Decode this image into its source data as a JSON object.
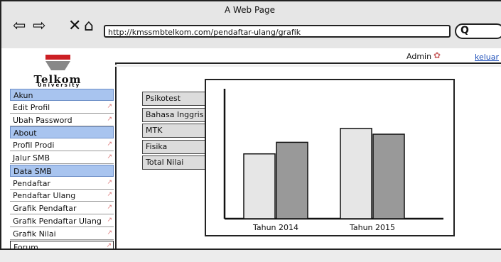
{
  "window": {
    "title": "A Web Page",
    "url": "http://kmssmbtelkom.com/pendaftar-ulang/grafik"
  },
  "nav_icons": {
    "back": "back-arrow-icon",
    "forward": "forward-arrow-icon",
    "stop": "close-icon",
    "home": "home-icon",
    "search": "search-icon"
  },
  "logo": {
    "name": "Telkom",
    "sub": "University"
  },
  "topbar": {
    "user": "Admin",
    "logout": "keluar"
  },
  "sidebar": {
    "items": [
      {
        "label": "Akun",
        "section": true
      },
      {
        "label": "Edit Profil"
      },
      {
        "label": "Ubah Password"
      },
      {
        "label": "About",
        "section": true
      },
      {
        "label": "Profil Prodi"
      },
      {
        "label": "Jalur SMB"
      },
      {
        "label": "Data SMB",
        "section": true
      },
      {
        "label": "Pendaftar"
      },
      {
        "label": "Pendaftar Ulang"
      },
      {
        "label": "Grafik Pendaftar"
      },
      {
        "label": "Grafik Pendaftar Ulang"
      },
      {
        "label": "Grafik Nilai"
      },
      {
        "label": "Forum",
        "forum": true
      }
    ]
  },
  "tabs": [
    {
      "label": "Psikotest"
    },
    {
      "label": "Bahasa Inggris"
    },
    {
      "label": "MTK"
    },
    {
      "label": "Fisika"
    },
    {
      "label": "Total Nilai"
    }
  ],
  "chart_data": {
    "type": "bar",
    "categories": [
      "Tahun 2014",
      "Tahun 2015"
    ],
    "series": [
      {
        "values": [
          56,
          78
        ],
        "color": "#e6e6e6"
      },
      {
        "values": [
          66,
          73
        ],
        "color": "#999999"
      }
    ],
    "ylim": [
      0,
      100
    ],
    "grid": false
  }
}
